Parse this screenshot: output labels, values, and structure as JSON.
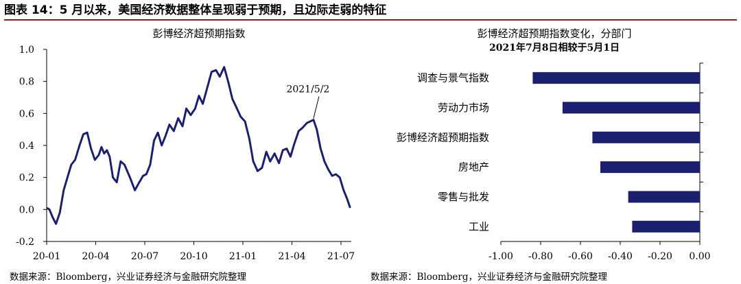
{
  "figure": {
    "title": "图表 14：5 月以来，美国经济数据整体呈现弱于预期，且边际走弱的特征",
    "source_left": "数据来源：Bloomberg，兴业证券经济与金融研究院整理",
    "source_right": "数据来源：Bloomberg，兴业证券经济与金融研究院整理"
  },
  "chart_data": [
    {
      "type": "line",
      "title": "彭博经济超预期指数",
      "x_tick_labels": [
        "20-01",
        "20-04",
        "20-07",
        "20-10",
        "21-01",
        "21-04",
        "21-07"
      ],
      "y_ticks": [
        -0.2,
        0.0,
        0.2,
        0.4,
        0.6,
        0.8,
        1.0
      ],
      "y_tick_labels": [
        "-0.2",
        "0.0",
        "0.2",
        "0.4",
        "0.6",
        "0.8",
        "1.0"
      ],
      "ylim": [
        -0.2,
        1.0
      ],
      "xlim": [
        "2020-01-01",
        "2021-07-10"
      ],
      "color": "#1a1f6e",
      "annotation": {
        "text": "2021/5/2",
        "x": "2021-05-02",
        "y": 0.56
      },
      "series": [
        {
          "x": [
            "2020-01-01",
            "2020-01-06",
            "2020-01-12",
            "2020-01-18",
            "2020-01-25",
            "2020-02-01",
            "2020-02-08",
            "2020-02-15",
            "2020-02-22",
            "2020-03-01",
            "2020-03-08",
            "2020-03-15",
            "2020-03-22",
            "2020-03-29",
            "2020-04-05",
            "2020-04-10",
            "2020-04-15",
            "2020-04-20",
            "2020-04-25",
            "2020-05-01",
            "2020-05-08",
            "2020-05-15",
            "2020-05-22",
            "2020-06-01",
            "2020-06-10",
            "2020-06-18",
            "2020-06-25",
            "2020-07-01",
            "2020-07-08",
            "2020-07-15",
            "2020-07-22",
            "2020-07-29",
            "2020-08-05",
            "2020-08-12",
            "2020-08-20",
            "2020-08-28",
            "2020-09-05",
            "2020-09-12",
            "2020-09-20",
            "2020-09-28",
            "2020-10-05",
            "2020-10-12",
            "2020-10-20",
            "2020-10-28",
            "2020-11-05",
            "2020-11-12",
            "2020-11-20",
            "2020-11-28",
            "2020-12-05",
            "2020-12-12",
            "2020-12-20",
            "2020-12-28",
            "2021-01-05",
            "2021-01-12",
            "2021-01-20",
            "2021-01-28",
            "2021-02-05",
            "2021-02-12",
            "2021-02-20",
            "2021-02-28",
            "2021-03-07",
            "2021-03-14",
            "2021-03-21",
            "2021-03-28",
            "2021-04-05",
            "2021-04-12",
            "2021-04-20",
            "2021-04-26",
            "2021-05-02",
            "2021-05-08",
            "2021-05-15",
            "2021-05-22",
            "2021-05-29",
            "2021-06-05",
            "2021-06-12",
            "2021-06-19",
            "2021-06-26",
            "2021-07-02",
            "2021-07-08"
          ],
          "y": [
            0.01,
            0.0,
            -0.05,
            -0.09,
            -0.02,
            0.12,
            0.2,
            0.28,
            0.31,
            0.4,
            0.47,
            0.48,
            0.38,
            0.31,
            0.34,
            0.39,
            0.35,
            0.37,
            0.33,
            0.2,
            0.17,
            0.3,
            0.28,
            0.2,
            0.12,
            0.17,
            0.21,
            0.22,
            0.28,
            0.43,
            0.48,
            0.4,
            0.46,
            0.53,
            0.49,
            0.57,
            0.52,
            0.63,
            0.59,
            0.63,
            0.71,
            0.66,
            0.76,
            0.86,
            0.87,
            0.83,
            0.89,
            0.79,
            0.69,
            0.64,
            0.58,
            0.55,
            0.44,
            0.3,
            0.24,
            0.26,
            0.36,
            0.3,
            0.35,
            0.29,
            0.37,
            0.38,
            0.33,
            0.41,
            0.49,
            0.51,
            0.54,
            0.55,
            0.56,
            0.5,
            0.38,
            0.3,
            0.25,
            0.21,
            0.22,
            0.2,
            0.12,
            0.07,
            0.01
          ]
        }
      ]
    },
    {
      "type": "bar",
      "orientation": "horizontal",
      "title": "彭博经济超预期指数变化，分部门",
      "subtitle": "2021年7月8日相较于5月1日",
      "categories": [
        "调查与景气指数",
        "劳动力市场",
        "彭博经济超预期指数",
        "房地产",
        "零售与批发",
        "工业"
      ],
      "values": [
        -0.84,
        -0.69,
        -0.54,
        -0.5,
        -0.36,
        -0.34
      ],
      "xlim": [
        -1.0,
        0.0
      ],
      "x_ticks": [
        -1.0,
        -0.8,
        -0.6,
        -0.4,
        -0.2,
        0.0
      ],
      "x_tick_labels": [
        "-1.00",
        "-0.80",
        "-0.60",
        "-0.40",
        "-0.20",
        "0.00"
      ],
      "color": "#1a1f6e"
    }
  ]
}
